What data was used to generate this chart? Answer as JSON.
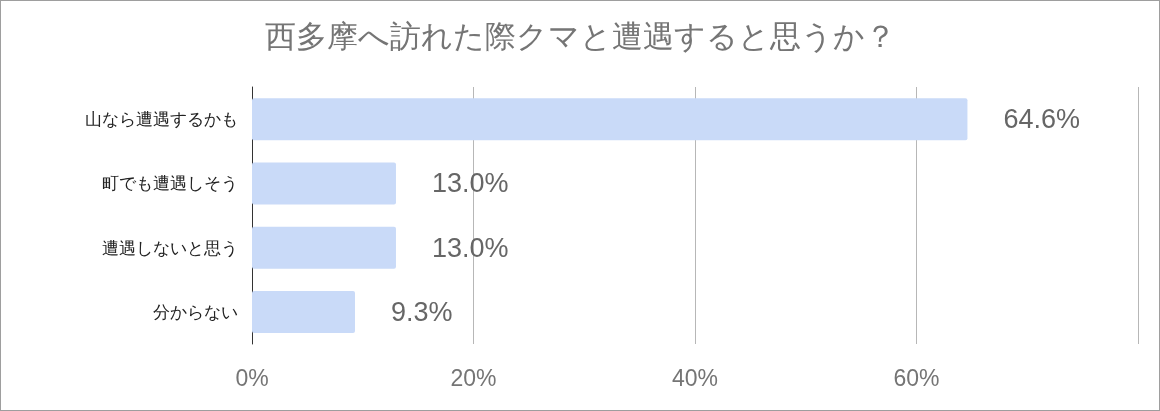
{
  "chart_data": {
    "type": "bar",
    "orientation": "horizontal",
    "title": "西多摩へ訪れた際クマと遭遇すると思うか？",
    "categories": [
      "山なら遭遇するかも",
      "町でも遭遇しそう",
      "遭遇しないと思う",
      "分からない"
    ],
    "values": [
      64.6,
      13.0,
      13.0,
      9.3
    ],
    "value_labels": [
      "64.6%",
      "13.0%",
      "13.0%",
      "9.3%"
    ],
    "color": "#c9daf8",
    "xlim": [
      0,
      80
    ],
    "xticks": [
      {
        "value": 0,
        "label": "0%"
      },
      {
        "value": 20,
        "label": "20%"
      },
      {
        "value": 40,
        "label": "40%"
      },
      {
        "value": 60,
        "label": "60%"
      },
      {
        "value": 80,
        "label": null
      }
    ],
    "grid": "x"
  }
}
